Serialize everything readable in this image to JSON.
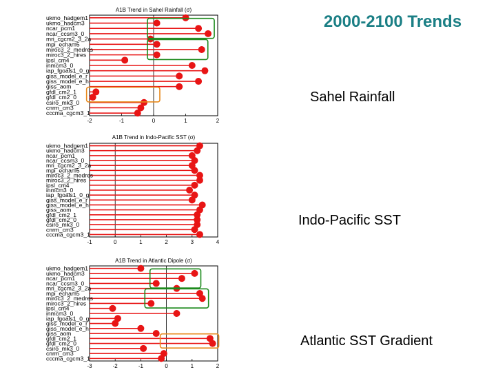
{
  "slide": {
    "title": "2000-2100 Trends",
    "captions": [
      "Sahel Rainfall",
      "Indo-Pacific SST",
      "Atlantic SST Gradient"
    ]
  },
  "colors": {
    "marker": "#e81515",
    "highlight_green": "#1c8a1c",
    "highlight_orange": "#e8891c",
    "title": "#1b7f85"
  },
  "chart_data": [
    {
      "type": "lollipop",
      "title": "A1B Trend in Sahel Rainfall (σ)",
      "xlim": [
        -2,
        2
      ],
      "xticks": [
        -2,
        -1,
        0,
        1,
        2
      ],
      "categories": [
        "ukmo_hadgem1",
        "ukmo_hadcm3",
        "ncar_pcm1",
        "ncar_ccsm3_0",
        "mri_cgcm2_3_2a",
        "mpi_echam5",
        "miroc3_2_medres",
        "miroc3_2_hires",
        "ipsl_cm4",
        "inmcm3_0",
        "iap_fgoals1_0_g",
        "giss_model_e_r",
        "giss_model_e_h",
        "giss_aom",
        "gfdl_cm2_1",
        "gfdl_cm2_0",
        "csiro_mk3_0",
        "cnrm_cm3",
        "cccma_cgcm3_1"
      ],
      "values": [
        1.0,
        0.1,
        1.4,
        1.7,
        -0.1,
        0.1,
        1.5,
        0.1,
        -0.9,
        1.2,
        1.6,
        0.8,
        1.4,
        0.8,
        -1.8,
        -1.9,
        -0.3,
        -0.4,
        -0.5
      ],
      "highlights": [
        {
          "color": "green",
          "from": "ukmo_hadcm3",
          "to": "ncar_ccsm3_0"
        },
        {
          "color": "green",
          "from": "mpi_echam5",
          "to": "miroc3_2_hires"
        },
        {
          "color": "orange",
          "from": "gfdl_cm2_1",
          "to": "gfdl_cm2_0"
        }
      ]
    },
    {
      "type": "lollipop",
      "title": "A1B Trend in Indo-Pacific SST (σ)",
      "xlim": [
        -1,
        4
      ],
      "xticks": [
        -1,
        0,
        1,
        2,
        3,
        4
      ],
      "categories": [
        "ukmo_hadgem1",
        "ukmo_hadcm3",
        "ncar_pcm1",
        "ncar_ccsm3_0",
        "mri_cgcm2_3_2a",
        "mpi_echam5",
        "miroc3_2_medres",
        "miroc3_2_hires",
        "ipsl_cm4",
        "inmcm3_0",
        "iap_fgoals1_0_g",
        "giss_model_e_r",
        "giss_model_e_h",
        "giss_aom",
        "gfdl_cm2_1",
        "gfdl_cm2_0",
        "csiro_mk3_0",
        "cnrm_cm3",
        "cccma_cgcm3_1"
      ],
      "values": [
        3.3,
        3.2,
        3.0,
        3.1,
        3.0,
        3.1,
        3.3,
        3.3,
        3.1,
        2.9,
        3.1,
        3.0,
        3.4,
        3.3,
        3.2,
        3.2,
        3.2,
        3.1,
        3.3
      ],
      "highlights": []
    },
    {
      "type": "lollipop",
      "title": "A1B Trend in Atlantic Dipole (σ)",
      "xlim": [
        -3,
        2
      ],
      "xticks": [
        -3,
        -2,
        -1,
        0,
        1,
        2
      ],
      "categories": [
        "ukmo_hadgem1",
        "ukmo_hadcm3",
        "ncar_pcm1",
        "ncar_ccsm3_0",
        "mri_cgcm2_3_2a",
        "mpi_echam5",
        "miroc3_2_medres",
        "miroc3_2_hires",
        "ipsl_cm4",
        "inmcm3_0",
        "iap_fgoals1_0_g",
        "giss_model_e_r",
        "giss_model_e_h",
        "giss_aom",
        "gfdl_cm2_1",
        "gfdl_cm2_0",
        "csiro_mk3_0",
        "cnrm_cm3",
        "cccma_cgcm3_1"
      ],
      "values": [
        -1.0,
        1.1,
        0.6,
        -0.4,
        0.4,
        1.3,
        1.4,
        -0.6,
        -2.1,
        0.4,
        -1.9,
        -2.0,
        -1.0,
        -0.4,
        1.7,
        1.8,
        -0.9,
        -0.1,
        -0.2
      ],
      "highlights": [
        {
          "color": "green",
          "from": "ukmo_hadcm3",
          "to": "ncar_ccsm3_0"
        },
        {
          "color": "green",
          "from": "mpi_echam5",
          "to": "miroc3_2_hires"
        },
        {
          "color": "orange",
          "from": "gfdl_cm2_1",
          "to": "gfdl_cm2_0"
        }
      ]
    }
  ]
}
